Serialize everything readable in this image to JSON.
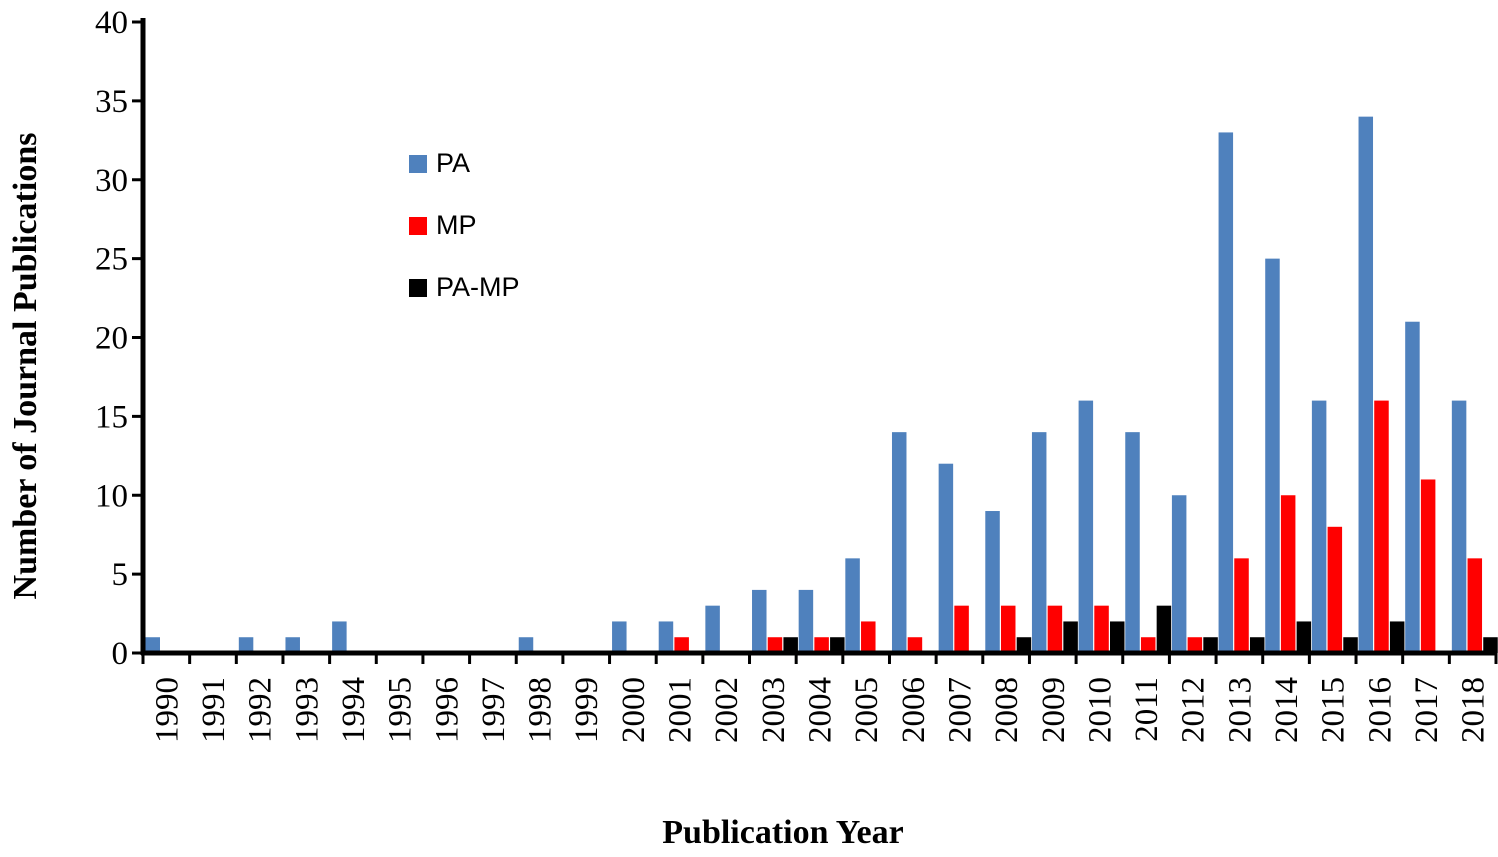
{
  "chart_data": {
    "type": "bar",
    "title": "",
    "xlabel": "Publication Year",
    "ylabel": "Number of Journal Publications",
    "ylim": [
      0,
      40
    ],
    "yticks": [
      0,
      5,
      10,
      15,
      20,
      25,
      30,
      35,
      40
    ],
    "grid": false,
    "legend_position": "upper-left",
    "categories": [
      "1990",
      "1991",
      "1992",
      "1993",
      "1994",
      "1995",
      "1996",
      "1997",
      "1998",
      "1999",
      "2000",
      "2001",
      "2002",
      "2003",
      "2004",
      "2005",
      "2006",
      "2007",
      "2008",
      "2009",
      "2010",
      "2011",
      "2012",
      "2013",
      "2014",
      "2015",
      "2016",
      "2017",
      "2018"
    ],
    "series": [
      {
        "name": "PA",
        "color": "#4F81BD",
        "values": [
          1,
          0,
          1,
          1,
          2,
          0,
          0,
          0,
          1,
          0,
          2,
          2,
          3,
          4,
          4,
          6,
          14,
          12,
          9,
          14,
          16,
          14,
          10,
          33,
          25,
          16,
          34,
          21,
          16
        ]
      },
      {
        "name": "MP",
        "color": "#FF0000",
        "values": [
          0,
          0,
          0,
          0,
          0,
          0,
          0,
          0,
          0,
          0,
          0,
          1,
          0,
          1,
          1,
          2,
          1,
          3,
          3,
          3,
          3,
          1,
          1,
          6,
          10,
          8,
          16,
          11,
          6
        ]
      },
      {
        "name": "PA-MP",
        "color": "#000000",
        "values": [
          0,
          0,
          0,
          0,
          0,
          0,
          0,
          0,
          0,
          0,
          0,
          0,
          0,
          1,
          1,
          0,
          0,
          0,
          1,
          2,
          2,
          3,
          1,
          1,
          2,
          1,
          2,
          0,
          1
        ]
      }
    ]
  }
}
